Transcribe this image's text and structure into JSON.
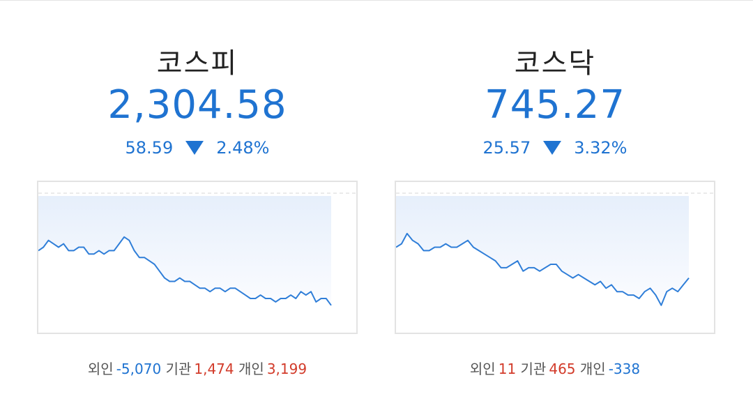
{
  "markets": {
    "kospi": {
      "name": "코스피",
      "value": "2,304.58",
      "change": "58.59",
      "percent": "2.48%",
      "direction": "down",
      "flows": {
        "foreign_label": "외인",
        "foreign_value": "-5,070",
        "institution_label": "기관",
        "institution_value": "1,474",
        "individual_label": "개인",
        "individual_value": "3,199"
      },
      "chart_data": {
        "type": "area",
        "values": [
          41,
          40,
          38,
          39,
          40,
          39,
          41,
          41,
          40,
          40,
          42,
          42,
          41,
          42,
          41,
          41,
          39,
          37,
          38,
          41,
          43,
          43,
          44,
          45,
          47,
          49,
          50,
          50,
          49,
          50,
          50,
          51,
          52,
          52,
          53,
          52,
          52,
          53,
          52,
          52,
          53,
          54,
          55,
          55,
          54,
          55,
          55,
          56,
          55,
          55,
          54,
          55,
          53,
          54,
          53,
          56,
          55,
          55,
          57
        ]
      }
    },
    "kosdaq": {
      "name": "코스닥",
      "value": "745.27",
      "change": "25.57",
      "percent": "3.32%",
      "direction": "down",
      "flows": {
        "foreign_label": "외인",
        "foreign_value": "11",
        "institution_label": "기관",
        "institution_value": "465",
        "individual_label": "개인",
        "individual_value": "-338"
      },
      "chart_data": {
        "type": "area",
        "values": [
          40,
          39,
          36,
          38,
          39,
          41,
          41,
          40,
          40,
          39,
          40,
          40,
          39,
          38,
          40,
          41,
          42,
          43,
          44,
          46,
          46,
          45,
          44,
          47,
          46,
          46,
          47,
          46,
          45,
          45,
          47,
          48,
          49,
          48,
          49,
          50,
          51,
          50,
          52,
          51,
          53,
          53,
          54,
          54,
          55,
          53,
          52,
          54,
          57,
          53,
          52,
          53,
          51,
          49
        ]
      }
    }
  },
  "colors": {
    "down": "#1f73d1",
    "up": "#d23b2a",
    "line": "#2f7ed8",
    "fill_top": "#e6effb",
    "fill_bottom": "#fbfcff"
  }
}
